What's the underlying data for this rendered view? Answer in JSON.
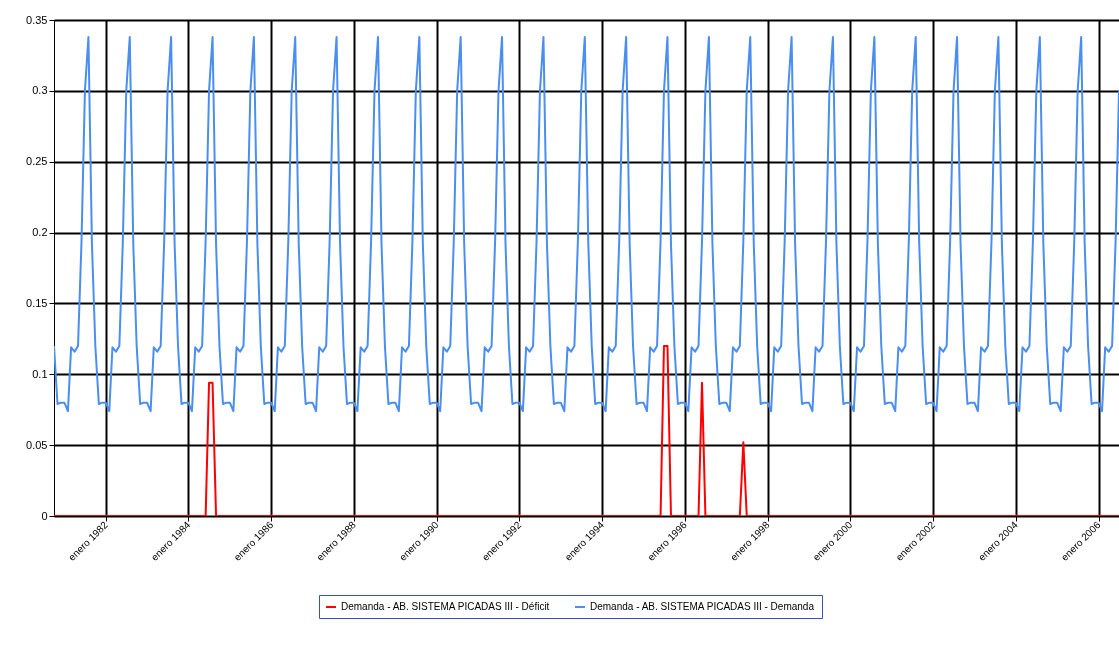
{
  "chart_data": {
    "type": "line",
    "x": [
      "1980-10",
      "1980-11",
      "1980-12",
      "1981-01",
      "1981-02",
      "1981-03",
      "1981-04",
      "1981-05",
      "1981-06",
      "1981-07",
      "1981-08",
      "1981-09",
      "1981-10",
      "1981-11",
      "1981-12",
      "1982-01",
      "1982-02",
      "1982-03",
      "1982-04",
      "1982-05",
      "1982-06",
      "1982-07",
      "1982-08",
      "1982-09",
      "1982-10",
      "1982-11",
      "1982-12",
      "1983-01",
      "1983-02",
      "1983-03",
      "1983-04",
      "1983-05",
      "1983-06",
      "1983-07",
      "1983-08",
      "1983-09",
      "1983-10",
      "1983-11",
      "1983-12",
      "1984-01",
      "1984-02",
      "1984-03",
      "1984-04",
      "1984-05",
      "1984-06",
      "1984-07",
      "1984-08",
      "1984-09",
      "1984-10",
      "1984-11",
      "1984-12",
      "1985-01",
      "1985-02",
      "1985-03",
      "1985-04",
      "1985-05",
      "1985-06",
      "1985-07",
      "1985-08",
      "1985-09",
      "1985-10",
      "1985-11",
      "1985-12",
      "1986-01",
      "1986-02",
      "1986-03",
      "1986-04",
      "1986-05",
      "1986-06",
      "1986-07",
      "1986-08",
      "1986-09",
      "1986-10",
      "1986-11",
      "1986-12",
      "1987-01",
      "1987-02",
      "1987-03",
      "1987-04",
      "1987-05",
      "1987-06",
      "1987-07",
      "1987-08",
      "1987-09",
      "1987-10",
      "1987-11",
      "1987-12",
      "1988-01",
      "1988-02",
      "1988-03",
      "1988-04",
      "1988-05",
      "1988-06",
      "1988-07",
      "1988-08",
      "1988-09",
      "1988-10",
      "1988-11",
      "1988-12",
      "1989-01",
      "1989-02",
      "1989-03",
      "1989-04",
      "1989-05",
      "1989-06",
      "1989-07",
      "1989-08",
      "1989-09",
      "1989-10",
      "1989-11",
      "1989-12",
      "1990-01",
      "1990-02",
      "1990-03",
      "1990-04",
      "1990-05",
      "1990-06",
      "1990-07",
      "1990-08",
      "1990-09",
      "1990-10",
      "1990-11",
      "1990-12",
      "1991-01",
      "1991-02",
      "1991-03",
      "1991-04",
      "1991-05",
      "1991-06",
      "1991-07",
      "1991-08",
      "1991-09",
      "1991-10",
      "1991-11",
      "1991-12",
      "1992-01",
      "1992-02",
      "1992-03",
      "1992-04",
      "1992-05",
      "1992-06",
      "1992-07",
      "1992-08",
      "1992-09",
      "1992-10",
      "1992-11",
      "1992-12",
      "1993-01",
      "1993-02",
      "1993-03",
      "1993-04",
      "1993-05",
      "1993-06",
      "1993-07",
      "1993-08",
      "1993-09",
      "1993-10",
      "1993-11",
      "1993-12",
      "1994-01",
      "1994-02",
      "1994-03",
      "1994-04",
      "1994-05",
      "1994-06",
      "1994-07",
      "1994-08",
      "1994-09",
      "1994-10",
      "1994-11",
      "1994-12",
      "1995-01",
      "1995-02",
      "1995-03",
      "1995-04",
      "1995-05",
      "1995-06",
      "1995-07",
      "1995-08",
      "1995-09",
      "1995-10",
      "1995-11",
      "1995-12",
      "1996-01",
      "1996-02",
      "1996-03",
      "1996-04",
      "1996-05",
      "1996-06",
      "1996-07",
      "1996-08",
      "1996-09",
      "1996-10",
      "1996-11",
      "1996-12",
      "1997-01",
      "1997-02",
      "1997-03",
      "1997-04",
      "1997-05",
      "1997-06",
      "1997-07",
      "1997-08",
      "1997-09",
      "1997-10",
      "1997-11",
      "1997-12",
      "1998-01",
      "1998-02",
      "1998-03",
      "1998-04",
      "1998-05",
      "1998-06",
      "1998-07",
      "1998-08",
      "1998-09",
      "1998-10",
      "1998-11",
      "1998-12",
      "1999-01",
      "1999-02",
      "1999-03",
      "1999-04",
      "1999-05",
      "1999-06",
      "1999-07",
      "1999-08",
      "1999-09",
      "1999-10",
      "1999-11",
      "1999-12",
      "2000-01",
      "2000-02",
      "2000-03",
      "2000-04",
      "2000-05",
      "2000-06",
      "2000-07",
      "2000-08",
      "2000-09",
      "2000-10",
      "2000-11",
      "2000-12",
      "2001-01",
      "2001-02",
      "2001-03",
      "2001-04",
      "2001-05",
      "2001-06",
      "2001-07",
      "2001-08",
      "2001-09",
      "2001-10",
      "2001-11",
      "2001-12",
      "2002-01",
      "2002-02",
      "2002-03",
      "2002-04",
      "2002-05",
      "2002-06",
      "2002-07",
      "2002-08",
      "2002-09",
      "2002-10",
      "2002-11",
      "2002-12",
      "2003-01",
      "2003-02",
      "2003-03",
      "2003-04",
      "2003-05",
      "2003-06",
      "2003-07",
      "2003-08",
      "2003-09",
      "2003-10",
      "2003-11",
      "2003-12",
      "2004-01",
      "2004-02",
      "2004-03",
      "2004-04",
      "2004-05",
      "2004-06",
      "2004-07",
      "2004-08",
      "2004-09",
      "2004-10",
      "2004-11",
      "2004-12",
      "2005-01",
      "2005-02",
      "2005-03",
      "2005-04",
      "2005-05",
      "2005-06",
      "2005-07",
      "2005-08",
      "2005-09",
      "2005-10",
      "2005-11",
      "2005-12",
      "2006-01",
      "2006-02",
      "2006-03",
      "2006-04",
      "2006-05",
      "2006-06",
      "2006-07"
    ],
    "series": [
      {
        "name": "Demanda - AB. SISTEMA PICADAS III - Déficit",
        "color": "#ff0000",
        "x": [
          "1980-10",
          "1984-06",
          "1984-07",
          "1984-08",
          "1984-09",
          "1995-06",
          "1995-07",
          "1995-08",
          "1995-09",
          "1996-05",
          "1996-06",
          "1996-07",
          "1997-05",
          "1997-06",
          "1997-07",
          "2006-07"
        ],
        "values": [
          0,
          0,
          0.094,
          0.094,
          0,
          0,
          0.12,
          0.12,
          0,
          0,
          0.094,
          0,
          0,
          0.052,
          0,
          0
        ]
      },
      {
        "name": "Demanda - AB. SISTEMA PICADAS III - Demanda",
        "color": "#4a8ef0",
        "values": [
          0.12,
          0.079,
          0.08,
          0.08,
          0.074,
          0.119,
          0.116,
          0.12,
          0.194,
          0.3,
          0.338,
          0.192,
          0.12,
          0.079,
          0.08,
          0.08,
          0.074,
          0.119,
          0.116,
          0.12,
          0.194,
          0.3,
          0.338,
          0.192,
          0.12,
          0.079,
          0.08,
          0.08,
          0.074,
          0.119,
          0.116,
          0.12,
          0.194,
          0.3,
          0.338,
          0.192,
          0.12,
          0.079,
          0.08,
          0.08,
          0.074,
          0.119,
          0.116,
          0.12,
          0.194,
          0.3,
          0.338,
          0.192,
          0.12,
          0.079,
          0.08,
          0.08,
          0.074,
          0.119,
          0.116,
          0.12,
          0.194,
          0.3,
          0.338,
          0.192,
          0.12,
          0.079,
          0.08,
          0.08,
          0.074,
          0.119,
          0.116,
          0.12,
          0.194,
          0.3,
          0.338,
          0.192,
          0.12,
          0.079,
          0.08,
          0.08,
          0.074,
          0.119,
          0.116,
          0.12,
          0.194,
          0.3,
          0.338,
          0.192,
          0.12,
          0.079,
          0.08,
          0.08,
          0.074,
          0.119,
          0.116,
          0.12,
          0.194,
          0.3,
          0.338,
          0.192,
          0.12,
          0.079,
          0.08,
          0.08,
          0.074,
          0.119,
          0.116,
          0.12,
          0.194,
          0.3,
          0.338,
          0.192,
          0.12,
          0.079,
          0.08,
          0.08,
          0.074,
          0.119,
          0.116,
          0.12,
          0.194,
          0.3,
          0.338,
          0.192,
          0.12,
          0.079,
          0.08,
          0.08,
          0.074,
          0.119,
          0.116,
          0.12,
          0.194,
          0.3,
          0.338,
          0.192,
          0.12,
          0.079,
          0.08,
          0.08,
          0.074,
          0.119,
          0.116,
          0.12,
          0.194,
          0.3,
          0.338,
          0.192,
          0.12,
          0.079,
          0.08,
          0.08,
          0.074,
          0.119,
          0.116,
          0.12,
          0.194,
          0.3,
          0.338,
          0.192,
          0.12,
          0.079,
          0.08,
          0.08,
          0.074,
          0.119,
          0.116,
          0.12,
          0.194,
          0.3,
          0.338,
          0.192,
          0.12,
          0.079,
          0.08,
          0.08,
          0.074,
          0.119,
          0.116,
          0.12,
          0.194,
          0.3,
          0.338,
          0.192,
          0.12,
          0.079,
          0.08,
          0.08,
          0.074,
          0.119,
          0.116,
          0.12,
          0.194,
          0.3,
          0.338,
          0.192,
          0.12,
          0.079,
          0.08,
          0.08,
          0.074,
          0.119,
          0.116,
          0.12,
          0.194,
          0.3,
          0.338,
          0.192,
          0.12,
          0.079,
          0.08,
          0.08,
          0.074,
          0.119,
          0.116,
          0.12,
          0.194,
          0.3,
          0.338,
          0.192,
          0.12,
          0.079,
          0.08,
          0.08,
          0.074,
          0.119,
          0.116,
          0.12,
          0.194,
          0.3,
          0.338,
          0.192,
          0.12,
          0.079,
          0.08,
          0.08,
          0.074,
          0.119,
          0.116,
          0.12,
          0.194,
          0.3,
          0.338,
          0.192,
          0.12,
          0.079,
          0.08,
          0.08,
          0.074,
          0.119,
          0.116,
          0.12,
          0.194,
          0.3,
          0.338,
          0.192,
          0.12,
          0.079,
          0.08,
          0.08,
          0.074,
          0.119,
          0.116,
          0.12,
          0.194,
          0.3,
          0.338,
          0.192,
          0.12,
          0.079,
          0.08,
          0.08,
          0.074,
          0.119,
          0.116,
          0.12,
          0.194,
          0.3,
          0.338,
          0.192,
          0.12,
          0.079,
          0.08,
          0.08,
          0.074,
          0.119,
          0.116,
          0.12,
          0.194,
          0.3,
          0.338,
          0.192,
          0.12,
          0.079,
          0.08,
          0.08,
          0.074,
          0.119,
          0.116,
          0.12,
          0.194,
          0.3,
          0.338,
          0.192,
          0.12,
          0.079,
          0.08,
          0.08,
          0.074,
          0.119,
          0.116,
          0.12,
          0.194,
          0.3
        ]
      }
    ],
    "xlim": [
      "1980-10",
      "2006-07"
    ],
    "xticks": [
      {
        "value": "1982-01",
        "label": "enero 1982"
      },
      {
        "value": "1984-01",
        "label": "enero 1984"
      },
      {
        "value": "1986-01",
        "label": "enero 1986"
      },
      {
        "value": "1988-01",
        "label": "enero 1988"
      },
      {
        "value": "1990-01",
        "label": "enero 1990"
      },
      {
        "value": "1992-01",
        "label": "enero 1992"
      },
      {
        "value": "1994-01",
        "label": "enero 1994"
      },
      {
        "value": "1996-01",
        "label": "enero 1996"
      },
      {
        "value": "1998-01",
        "label": "enero 1998"
      },
      {
        "value": "2000-01",
        "label": "enero 2000"
      },
      {
        "value": "2002-01",
        "label": "enero 2002"
      },
      {
        "value": "2004-01",
        "label": "enero 2004"
      },
      {
        "value": "2006-01",
        "label": "enero 2006"
      }
    ],
    "ylim": [
      0,
      0.35
    ],
    "yticks": [
      0,
      0.05,
      0.1,
      0.15,
      0.2,
      0.25,
      0.3,
      0.35
    ],
    "grid": true,
    "legend": "bottom"
  }
}
